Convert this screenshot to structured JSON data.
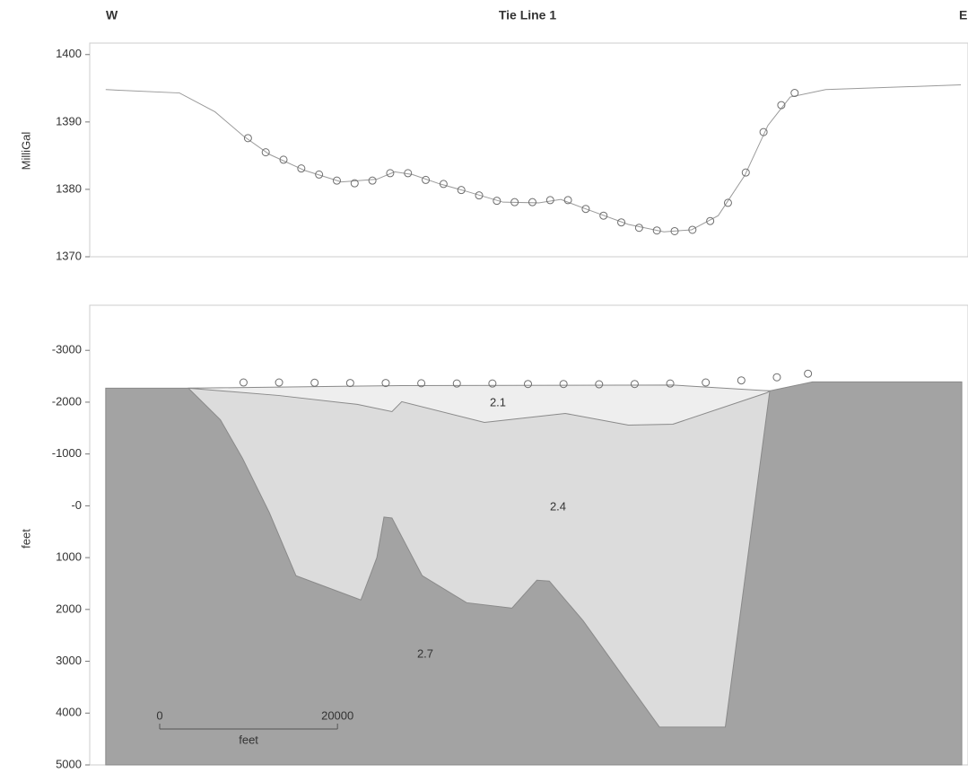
{
  "chart_data": [
    {
      "type": "line",
      "title": "Tie Line 1",
      "left_label": "W",
      "right_label": "E",
      "ylabel": "MilliGal",
      "xlim": [
        -1800,
        97000
      ],
      "ylim": [
        1370,
        1401.7
      ],
      "yticks": [
        1370,
        1380,
        1390,
        1400
      ],
      "series": [
        {
          "color": "#9a9a9a",
          "x": [
            0,
            8300,
            12300,
            15500,
            18400,
            22400,
            26500,
            30500,
            32500,
            34500,
            37600,
            40600,
            44700,
            48700,
            51200,
            53800,
            58800,
            62800,
            65900,
            68900,
            71900,
            74500,
            77000,
            81000,
            96200
          ],
          "values": [
            1394.8,
            1394.3,
            1391.5,
            1387.9,
            1385.2,
            1382.8,
            1381.1,
            1381.5,
            1382.6,
            1382.2,
            1380.8,
            1379.7,
            1378.1,
            1378,
            1378.5,
            1377.2,
            1374.8,
            1373.7,
            1374,
            1376.1,
            1382.1,
            1389.5,
            1393.7,
            1394.8,
            1395.5
          ]
        },
        {
          "color": "#6e6e6e",
          "marker": "circle",
          "x": [
            16000,
            18000,
            20000,
            22000,
            24000,
            26000,
            28000,
            30000,
            32000,
            34000,
            36000,
            38000,
            40000,
            42000,
            44000,
            46000,
            48000,
            50000,
            52000,
            54000,
            56000,
            58000,
            60000,
            62000,
            64000,
            66000,
            68000,
            70000,
            72000,
            74000,
            76000,
            77500
          ],
          "values": [
            1387.6,
            1385.5,
            1384.4,
            1383.1,
            1382.2,
            1381.3,
            1380.9,
            1381.3,
            1382.4,
            1382.4,
            1381.4,
            1380.8,
            1379.9,
            1379.1,
            1378.3,
            1378.1,
            1378.1,
            1378.4,
            1378.4,
            1377.1,
            1376.1,
            1375.1,
            1374.3,
            1373.9,
            1373.8,
            1374.0,
            1375.3,
            1378.0,
            1382.5,
            1388.5,
            1392.5,
            1394.3
          ]
        }
      ]
    },
    {
      "type": "section",
      "ylabel": "feet",
      "invert_y": true,
      "xlim": [
        -1800,
        97000
      ],
      "ylim": [
        -3870,
        5000
      ],
      "yticks": [
        -3000,
        -2000,
        -1000,
        {
          "value": 0,
          "label": "-0"
        },
        1000,
        2000,
        3000,
        4000,
        5000
      ],
      "bodies": [
        {
          "label": "2.7",
          "color": "#a3a3a3",
          "x": [
            0,
            9300,
            74700,
            79500,
            96300,
            96300,
            0
          ],
          "values": [
            -2270,
            -2270,
            -2217,
            -2391,
            -2391,
            5000,
            5000
          ]
        },
        {
          "label": "2.4",
          "color": "#dcdcdc",
          "x": [
            9300,
            12900,
            15400,
            18400,
            21400,
            28700,
            30500,
            31300,
            32200,
            35600,
            40600,
            45700,
            48500,
            49900,
            53700,
            58800,
            62300,
            69700,
            74700
          ],
          "values": [
            -2270,
            -1660,
            -913,
            130,
            1348,
            1817,
            1000,
            217,
            235,
            1348,
            1870,
            1974,
            1435,
            1452,
            2217,
            3435,
            4270,
            4270,
            -2217
          ]
        },
        {
          "label": "2.1",
          "color": "#eeeeee",
          "x": [
            9300,
            19400,
            28300,
            32200,
            33300,
            42600,
            51700,
            58800,
            63800,
            74400,
            74700,
            63800,
            33300
          ],
          "values": [
            -2270,
            -2130,
            -1957,
            -1817,
            -2009,
            -1609,
            -1783,
            -1557,
            -1574,
            -2183,
            -2217,
            -2330,
            -2320
          ]
        }
      ],
      "series": [
        {
          "color": "#6e6e6e",
          "marker": "circle",
          "x": [
            15500,
            19500,
            23500,
            27500,
            31500,
            35500,
            39500,
            43500,
            47500,
            51500,
            55500,
            59500,
            63500,
            67500,
            71500,
            75500,
            79000
          ],
          "values": [
            -2380,
            -2380,
            -2375,
            -2370,
            -2370,
            -2365,
            -2360,
            -2360,
            -2350,
            -2350,
            -2345,
            -2350,
            -2360,
            -2380,
            -2420,
            -2480,
            -2550
          ]
        }
      ],
      "scale_bar": {
        "values": [
          0,
          20000
        ],
        "unit": "feet"
      }
    }
  ]
}
